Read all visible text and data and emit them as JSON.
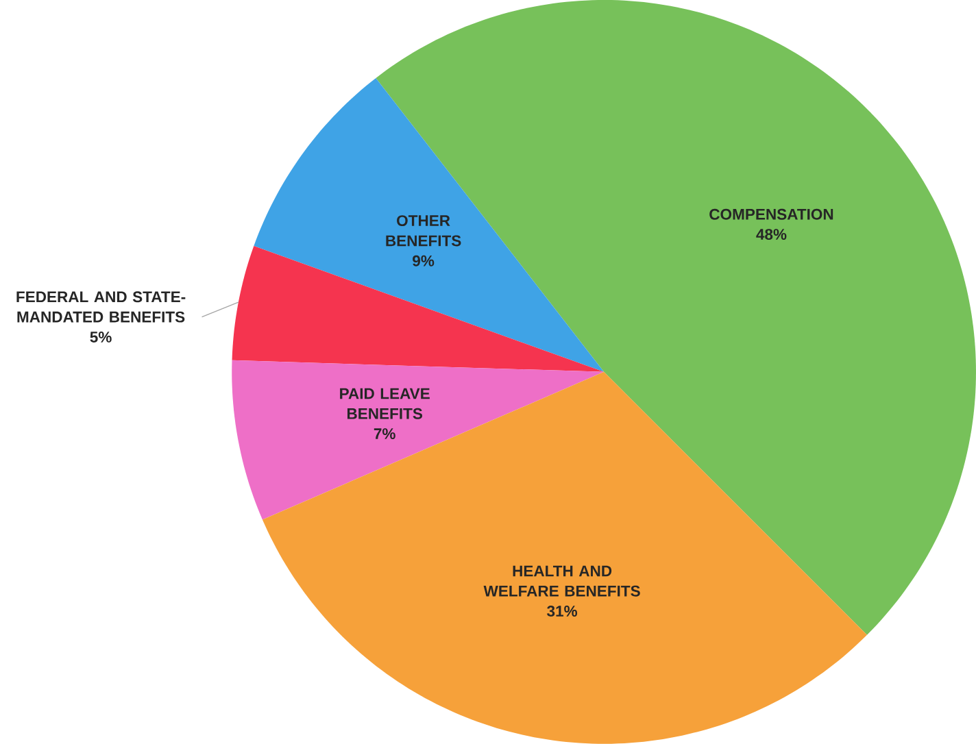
{
  "chart_data": {
    "type": "pie",
    "categories": [
      "COMPENSATION",
      "OTHER BENEFITS",
      "FEDERAL AND STATE-MANDATED BENEFITS",
      "PAID LEAVE BENEFITS",
      "HEALTH AND WELFARE BENEFITS"
    ],
    "values": [
      48,
      9,
      5,
      7,
      31
    ],
    "value_labels": [
      "48%",
      "9%",
      "5%",
      "7%",
      "31%"
    ],
    "colors": [
      "#77c15a",
      "#3fa3e6",
      "#f5344f",
      "#ee6fc7",
      "#f6a13a"
    ]
  }
}
